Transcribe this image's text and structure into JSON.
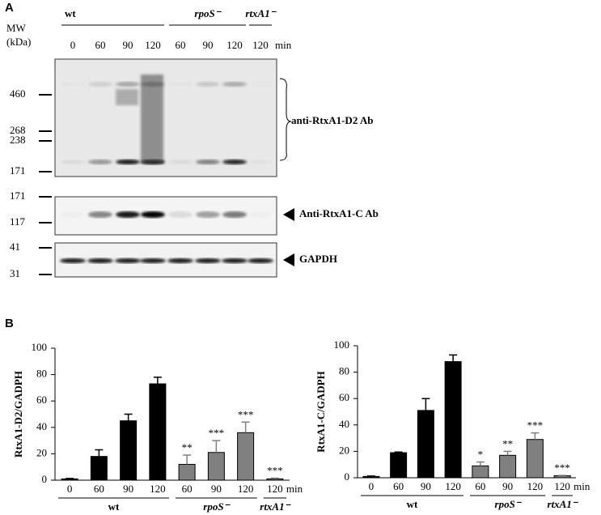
{
  "panel_a": {
    "label": "A",
    "mw_label": [
      "MW",
      "(kDa)"
    ],
    "groups": [
      "wt",
      "rpoS⁻",
      "rtxA1⁻"
    ],
    "lanes": [
      "0",
      "60",
      "90",
      "120",
      "60",
      "90",
      "120",
      "120"
    ],
    "unit": "min",
    "markers_d2": [
      460,
      268,
      238,
      171
    ],
    "markers_c": [
      171,
      117
    ],
    "markers_gapdh": [
      41,
      31
    ],
    "antibodies": [
      "anti-RtxA1-D2  Ab",
      "Anti-RtxA1-C  Ab",
      "GAPDH"
    ]
  },
  "panel_b": {
    "label": "B"
  },
  "chart_data": [
    {
      "type": "bar",
      "ylabel": "RtxA1-D2/GADPH",
      "categories": [
        "0",
        "60",
        "90",
        "120",
        "60",
        "90",
        "120",
        "120"
      ],
      "x_unit": "min",
      "values": [
        1,
        18,
        45,
        73,
        12,
        21,
        36,
        1
      ],
      "errors": [
        0.3,
        5,
        5,
        5,
        7,
        9,
        8,
        0.5
      ],
      "colors": [
        "#000000",
        "#000000",
        "#000000",
        "#000000",
        "#808080",
        "#808080",
        "#808080",
        "#808080"
      ],
      "significance": [
        null,
        null,
        null,
        null,
        "**",
        "***",
        "***",
        "***"
      ],
      "groups": [
        "wt",
        "rpoS⁻",
        "rtxA1⁻"
      ],
      "ylim": [
        0,
        100
      ],
      "yticks": [
        0,
        20,
        40,
        60,
        80,
        100
      ]
    },
    {
      "type": "bar",
      "ylabel": "RtxA1-C/GADPH",
      "categories": [
        "0",
        "60",
        "90",
        "120",
        "60",
        "90",
        "120",
        "120"
      ],
      "x_unit": "min",
      "values": [
        1,
        19,
        51,
        88,
        9,
        17,
        29,
        1.5
      ],
      "errors": [
        0.3,
        0.5,
        9,
        5,
        3,
        3,
        5,
        0.3
      ],
      "colors": [
        "#000000",
        "#000000",
        "#000000",
        "#000000",
        "#808080",
        "#808080",
        "#808080",
        "#808080"
      ],
      "significance": [
        null,
        null,
        null,
        null,
        "*",
        "**",
        "***",
        "***"
      ],
      "groups": [
        "wt",
        "rpoS⁻",
        "rtxA1⁻"
      ],
      "ylim": [
        0,
        100
      ],
      "yticks": [
        0,
        20,
        40,
        60,
        80,
        100
      ]
    }
  ]
}
